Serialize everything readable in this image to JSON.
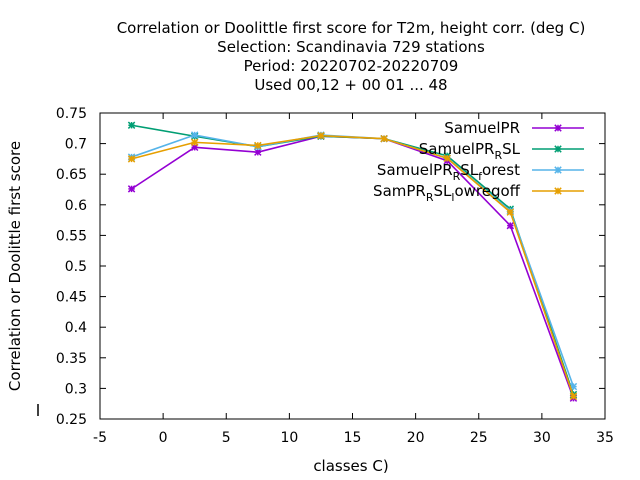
{
  "chart_data": {
    "type": "line",
    "title_lines": [
      "Correlation or Doolittle first score  for T2m, height corr. (deg C)",
      "Selection: Scandinavia    729 stations",
      "Period: 20220702-20220709",
      "Used  00,12  + 00 01 ... 48"
    ],
    "xlabel": "classes C)",
    "ylabel": "Correlation or Doolittle first score",
    "xlim": [
      -5,
      35
    ],
    "ylim": [
      0.25,
      0.75
    ],
    "xticks": [
      -5,
      0,
      5,
      10,
      15,
      20,
      25,
      30,
      35
    ],
    "yticks": [
      0.25,
      0.3,
      0.35,
      0.4,
      0.45,
      0.5,
      0.55,
      0.6,
      0.65,
      0.7,
      0.75
    ],
    "legend_position": "top-right",
    "grid": false,
    "x": [
      -2.5,
      2.5,
      7.5,
      12.5,
      17.5,
      22.5,
      27.5,
      32.5
    ],
    "series": [
      {
        "legend_main": "SamuelPR",
        "legend_sub": "",
        "legend_tail": "",
        "color": "#9400d3",
        "values": [
          0.626,
          0.694,
          0.686,
          0.712,
          0.708,
          0.672,
          0.566,
          0.284
        ]
      },
      {
        "legend_main": "SamuelPR",
        "legend_sub": "R",
        "legend_tail": "SL",
        "color": "#009e73",
        "values": [
          0.73,
          0.712,
          0.695,
          0.712,
          0.708,
          0.68,
          0.593,
          0.29
        ]
      },
      {
        "legend_main": "SamuelPR",
        "legend_sub": "R",
        "legend_tail": "SL",
        "legend_sub2": "f",
        "legend_tail2": "orest",
        "color": "#56b4e9",
        "values": [
          0.678,
          0.714,
          0.695,
          0.714,
          0.708,
          0.676,
          0.59,
          0.303
        ]
      },
      {
        "legend_main": "SamPR",
        "legend_sub": "R",
        "legend_tail": "SL",
        "legend_sub2": "l",
        "legend_tail2": "owregoff",
        "color": "#e69f00",
        "values": [
          0.675,
          0.702,
          0.697,
          0.713,
          0.708,
          0.676,
          0.588,
          0.287
        ]
      }
    ]
  }
}
